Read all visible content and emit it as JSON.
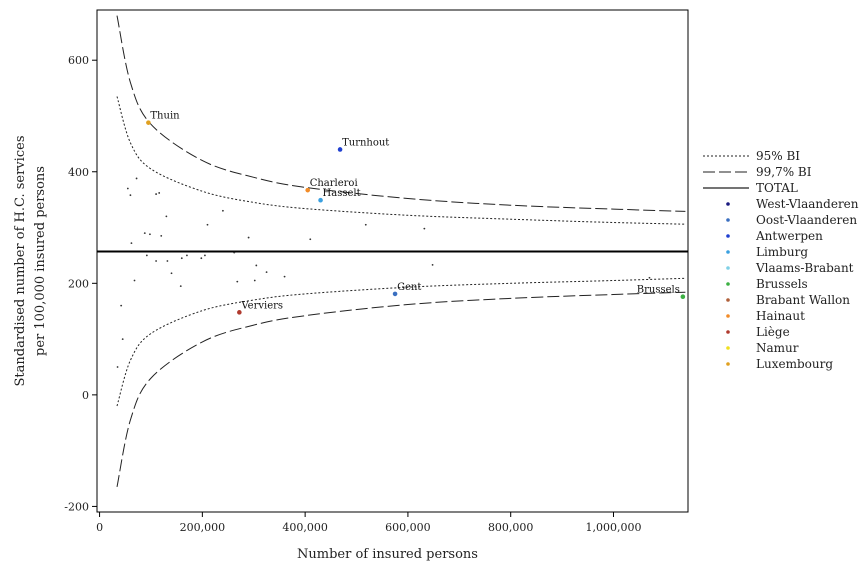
{
  "chart_data": {
    "type": "scatter",
    "title": "",
    "xlabel": "Number of insured persons",
    "ylabel": [
      "Standardised number of H.C. services",
      "per 100,000 insured persons"
    ],
    "xlim": [
      -5000,
      1145000
    ],
    "ylim": [
      -210,
      690
    ],
    "xticks": [
      0,
      200000,
      400000,
      600000,
      800000,
      1000000
    ],
    "xtick_labels": [
      "0",
      "200,000",
      "400,000",
      "600,000",
      "800,000",
      "1,000,000"
    ],
    "yticks": [
      -200,
      0,
      200,
      400,
      600
    ],
    "ytick_labels": [
      "-200",
      "0",
      "200",
      "400",
      "600"
    ],
    "total_rate": 257,
    "grid": false,
    "legend_position": "right",
    "legend": {
      "lines": [
        {
          "label": "95% BI",
          "style": "dotted"
        },
        {
          "label": "99,7% BI",
          "style": "dashed"
        },
        {
          "label": "TOTAL",
          "style": "solid"
        }
      ],
      "provinces": [
        {
          "label": "West-Vlaanderen",
          "color": "#1a1a80"
        },
        {
          "label": "Oost-Vlaanderen",
          "color": "#3a6fc0"
        },
        {
          "label": "Antwerpen",
          "color": "#1f3fd0"
        },
        {
          "label": "Limburg",
          "color": "#3aa0e0"
        },
        {
          "label": "Vlaams-Brabant",
          "color": "#7fd0e6"
        },
        {
          "label": "Brussels",
          "color": "#3cb043"
        },
        {
          "label": "Brabant Wallon",
          "color": "#b0603a"
        },
        {
          "label": "Hainaut",
          "color": "#f28c28"
        },
        {
          "label": "Liège",
          "color": "#b03a2e"
        },
        {
          "label": "Namur",
          "color": "#f0e020"
        },
        {
          "label": "Luxembourg",
          "color": "#e0a020"
        }
      ]
    },
    "labeled_points": [
      {
        "name": "Thuin",
        "x": 95000,
        "y": 488,
        "color": "#e0a020"
      },
      {
        "name": "Turnhout",
        "x": 468000,
        "y": 440,
        "color": "#1f3fd0"
      },
      {
        "name": "Charleroi",
        "x": 405000,
        "y": 367,
        "color": "#f28c28"
      },
      {
        "name": "Hasselt",
        "x": 430000,
        "y": 349,
        "color": "#3aa0e0"
      },
      {
        "name": "Gent",
        "x": 575000,
        "y": 181,
        "color": "#3a6fc0"
      },
      {
        "name": "Verviers",
        "x": 272000,
        "y": 148,
        "color": "#b03a2e"
      },
      {
        "name": "Brussels",
        "x": 1135000,
        "y": 176,
        "color": "#3cb043"
      }
    ],
    "small_points": [
      [
        35000,
        50
      ],
      [
        42000,
        160
      ],
      [
        45000,
        100
      ],
      [
        55000,
        370
      ],
      [
        60000,
        358
      ],
      [
        62000,
        272
      ],
      [
        68000,
        205
      ],
      [
        72000,
        388
      ],
      [
        88000,
        290
      ],
      [
        92000,
        250
      ],
      [
        98000,
        288
      ],
      [
        110000,
        240
      ],
      [
        110000,
        360
      ],
      [
        116000,
        362
      ],
      [
        120000,
        285
      ],
      [
        130000,
        320
      ],
      [
        132000,
        240
      ],
      [
        140000,
        218
      ],
      [
        158000,
        195
      ],
      [
        160000,
        245
      ],
      [
        170000,
        250
      ],
      [
        198000,
        245
      ],
      [
        205000,
        250
      ],
      [
        210000,
        305
      ],
      [
        240000,
        330
      ],
      [
        262000,
        255
      ],
      [
        268000,
        203
      ],
      [
        290000,
        282
      ],
      [
        302000,
        205
      ],
      [
        305000,
        232
      ],
      [
        325000,
        220
      ],
      [
        360000,
        212
      ],
      [
        410000,
        279
      ],
      [
        518000,
        305
      ],
      [
        632000,
        298
      ],
      [
        648000,
        233
      ],
      [
        1070000,
        210
      ]
    ],
    "bands": {
      "n_from": 34000,
      "n_to": 1140000,
      "ci95": {
        "upper": [
          [
            34000,
            535
          ],
          [
            60000,
            452
          ],
          [
            100000,
            405
          ],
          [
            200000,
            365
          ],
          [
            300000,
            345
          ],
          [
            400000,
            334
          ],
          [
            600000,
            322
          ],
          [
            800000,
            315
          ],
          [
            1000000,
            309
          ],
          [
            1140000,
            306
          ]
        ],
        "lower": [
          [
            34000,
            -20
          ],
          [
            60000,
            62
          ],
          [
            100000,
            110
          ],
          [
            200000,
            151
          ],
          [
            300000,
            170
          ],
          [
            400000,
            181
          ],
          [
            600000,
            193
          ],
          [
            800000,
            200
          ],
          [
            1000000,
            205
          ],
          [
            1140000,
            209
          ]
        ]
      },
      "ci997": {
        "upper": [
          [
            34000,
            680
          ],
          [
            60000,
            560
          ],
          [
            100000,
            485
          ],
          [
            200000,
            420
          ],
          [
            300000,
            390
          ],
          [
            400000,
            372
          ],
          [
            600000,
            352
          ],
          [
            800000,
            340
          ],
          [
            1000000,
            333
          ],
          [
            1140000,
            329
          ]
        ],
        "lower": [
          [
            34000,
            -165
          ],
          [
            60000,
            -45
          ],
          [
            100000,
            30
          ],
          [
            200000,
            95
          ],
          [
            300000,
            125
          ],
          [
            400000,
            142
          ],
          [
            600000,
            162
          ],
          [
            800000,
            173
          ],
          [
            1000000,
            180
          ],
          [
            1140000,
            184
          ]
        ]
      }
    }
  }
}
